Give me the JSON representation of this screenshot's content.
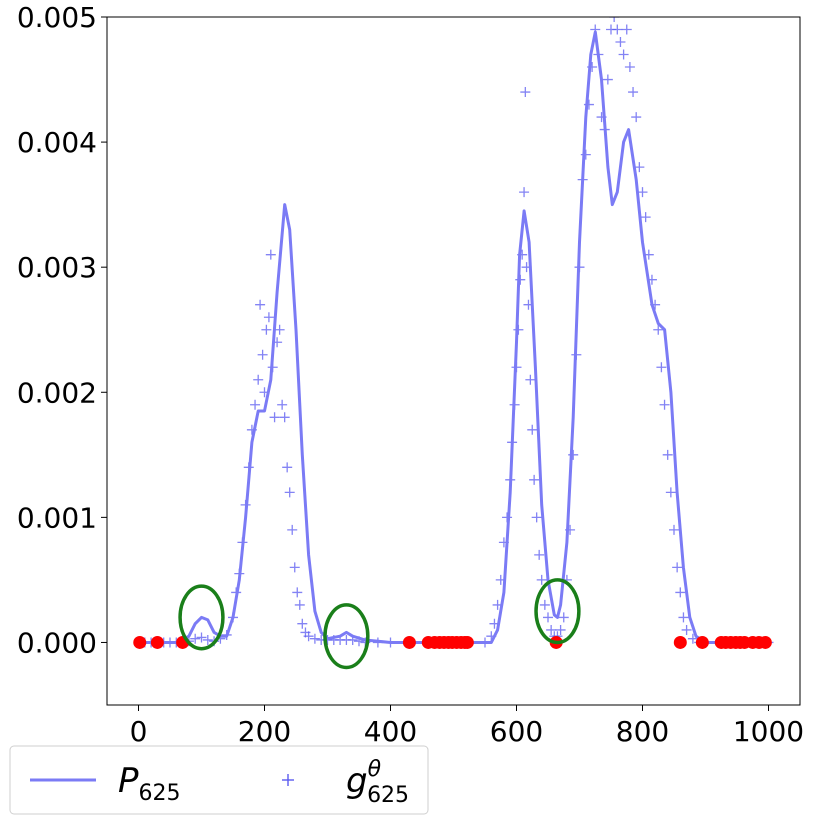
{
  "chart_data": {
    "type": "line",
    "title": "",
    "xlabel": "",
    "ylabel": "",
    "xlim": [
      -50,
      1050
    ],
    "ylim": [
      -0.0005,
      0.005
    ],
    "x_ticks": [
      0,
      200,
      400,
      600,
      800,
      1000
    ],
    "x_tick_labels": [
      "0",
      "200",
      "400",
      "600",
      "800",
      "1000"
    ],
    "y_ticks": [
      0.0,
      0.001,
      0.002,
      0.003,
      0.004,
      0.005
    ],
    "y_tick_labels": [
      "0.000",
      "0.001",
      "0.002",
      "0.003",
      "0.004",
      "0.005"
    ],
    "grid": false,
    "legend_placement": "below-left",
    "series": [
      {
        "name": "P625",
        "kind": "line",
        "color": "#7b7bf5",
        "points": [
          [
            0,
            0
          ],
          [
            60,
            0
          ],
          [
            80,
            5e-05
          ],
          [
            90,
            0.00015
          ],
          [
            100,
            0.0002
          ],
          [
            110,
            0.00018
          ],
          [
            120,
            8e-05
          ],
          [
            130,
            5e-05
          ],
          [
            140,
            5e-05
          ],
          [
            150,
            0.0002
          ],
          [
            160,
            0.0005
          ],
          [
            170,
            0.001
          ],
          [
            180,
            0.0016
          ],
          [
            190,
            0.00185
          ],
          [
            200,
            0.00185
          ],
          [
            210,
            0.0021
          ],
          [
            220,
            0.0028
          ],
          [
            232,
            0.0035
          ],
          [
            240,
            0.0033
          ],
          [
            250,
            0.0025
          ],
          [
            260,
            0.0015
          ],
          [
            270,
            0.0007
          ],
          [
            280,
            0.00025
          ],
          [
            290,
            8e-05
          ],
          [
            300,
            3e-05
          ],
          [
            320,
            5e-05
          ],
          [
            330,
            8e-05
          ],
          [
            340,
            5e-05
          ],
          [
            360,
            2e-05
          ],
          [
            400,
            0
          ],
          [
            560,
            0
          ],
          [
            570,
            0.0001
          ],
          [
            580,
            0.0004
          ],
          [
            590,
            0.0012
          ],
          [
            600,
            0.0024
          ],
          [
            605,
            0.0031
          ],
          [
            612,
            0.00345
          ],
          [
            620,
            0.0032
          ],
          [
            630,
            0.0022
          ],
          [
            640,
            0.0011
          ],
          [
            650,
            0.0005
          ],
          [
            660,
            0.00022
          ],
          [
            665,
            0.0002
          ],
          [
            670,
            0.0003
          ],
          [
            680,
            0.0008
          ],
          [
            690,
            0.0018
          ],
          [
            700,
            0.0032
          ],
          [
            710,
            0.0042
          ],
          [
            718,
            0.0047
          ],
          [
            725,
            0.00488
          ],
          [
            735,
            0.0045
          ],
          [
            745,
            0.0038
          ],
          [
            752,
            0.0035
          ],
          [
            760,
            0.0036
          ],
          [
            770,
            0.004
          ],
          [
            778,
            0.0041
          ],
          [
            790,
            0.0037
          ],
          [
            800,
            0.0032
          ],
          [
            815,
            0.0027
          ],
          [
            825,
            0.00255
          ],
          [
            835,
            0.0025
          ],
          [
            845,
            0.002
          ],
          [
            855,
            0.0012
          ],
          [
            865,
            0.0006
          ],
          [
            875,
            0.0002
          ],
          [
            885,
            5e-05
          ],
          [
            900,
            0
          ],
          [
            1000,
            0
          ]
        ]
      },
      {
        "name": "g625θ",
        "kind": "scatter",
        "marker": "+",
        "color": "#5a5af0",
        "points": [
          [
            0,
            0
          ],
          [
            10,
            0
          ],
          [
            20,
            0
          ],
          [
            30,
            0
          ],
          [
            40,
            0
          ],
          [
            50,
            0
          ],
          [
            60,
            0
          ],
          [
            70,
            0
          ],
          [
            80,
            1e-05
          ],
          [
            90,
            3e-05
          ],
          [
            100,
            4e-05
          ],
          [
            110,
            2e-05
          ],
          [
            120,
            1e-05
          ],
          [
            130,
            3e-05
          ],
          [
            140,
            6e-05
          ],
          [
            150,
            0.0002
          ],
          [
            155,
            0.0004
          ],
          [
            160,
            0.00055
          ],
          [
            165,
            0.0008
          ],
          [
            170,
            0.0011
          ],
          [
            175,
            0.0014
          ],
          [
            180,
            0.0017
          ],
          [
            185,
            0.0019
          ],
          [
            190,
            0.0021
          ],
          [
            193,
            0.0027
          ],
          [
            197,
            0.0023
          ],
          [
            200,
            0.002
          ],
          [
            203,
            0.0025
          ],
          [
            207,
            0.0026
          ],
          [
            210,
            0.0031
          ],
          [
            213,
            0.0022
          ],
          [
            216,
            0.0018
          ],
          [
            220,
            0.0024
          ],
          [
            224,
            0.0025
          ],
          [
            228,
            0.0019
          ],
          [
            232,
            0.0018
          ],
          [
            236,
            0.0014
          ],
          [
            240,
            0.0012
          ],
          [
            244,
            0.0009
          ],
          [
            248,
            0.0006
          ],
          [
            252,
            0.0004
          ],
          [
            256,
            0.0003
          ],
          [
            260,
            0.00015
          ],
          [
            265,
            8e-05
          ],
          [
            270,
            5e-05
          ],
          [
            280,
            3e-05
          ],
          [
            290,
            2e-05
          ],
          [
            300,
            2e-05
          ],
          [
            310,
            2e-05
          ],
          [
            320,
            2e-05
          ],
          [
            330,
            2e-05
          ],
          [
            340,
            2e-05
          ],
          [
            350,
            1e-05
          ],
          [
            360,
            0
          ],
          [
            380,
            0
          ],
          [
            400,
            0
          ],
          [
            430,
            0
          ],
          [
            460,
            0
          ],
          [
            490,
            0
          ],
          [
            520,
            0
          ],
          [
            550,
            0
          ],
          [
            560,
            5e-05
          ],
          [
            565,
            0.00015
          ],
          [
            570,
            0.0003
          ],
          [
            575,
            0.0005
          ],
          [
            580,
            0.0008
          ],
          [
            585,
            0.001
          ],
          [
            590,
            0.0013
          ],
          [
            593,
            0.0016
          ],
          [
            597,
            0.0019
          ],
          [
            600,
            0.0022
          ],
          [
            603,
            0.0025
          ],
          [
            606,
            0.0029
          ],
          [
            609,
            0.0031
          ],
          [
            612,
            0.0036
          ],
          [
            614,
            0.0044
          ],
          [
            616,
            0.003
          ],
          [
            619,
            0.0027
          ],
          [
            622,
            0.0021
          ],
          [
            625,
            0.0017
          ],
          [
            628,
            0.0013
          ],
          [
            632,
            0.001
          ],
          [
            636,
            0.0007
          ],
          [
            640,
            0.0005
          ],
          [
            645,
            0.0003
          ],
          [
            650,
            0.0002
          ],
          [
            655,
            0.0001
          ],
          [
            660,
            5e-05
          ],
          [
            665,
            5e-05
          ],
          [
            670,
            0.0001
          ],
          [
            675,
            0.0002
          ],
          [
            680,
            0.0005
          ],
          [
            685,
            0.0009
          ],
          [
            690,
            0.0015
          ],
          [
            695,
            0.0023
          ],
          [
            700,
            0.003
          ],
          [
            705,
            0.0037
          ],
          [
            710,
            0.0039
          ],
          [
            715,
            0.0043
          ],
          [
            720,
            0.0046
          ],
          [
            725,
            0.0049
          ],
          [
            730,
            0.0047
          ],
          [
            735,
            0.0042
          ],
          [
            740,
            0.0041
          ],
          [
            745,
            0.0045
          ],
          [
            750,
            0.0049
          ],
          [
            755,
            0.005
          ],
          [
            760,
            0.0049
          ],
          [
            765,
            0.0048
          ],
          [
            770,
            0.0047
          ],
          [
            775,
            0.0049
          ],
          [
            780,
            0.0046
          ],
          [
            785,
            0.0044
          ],
          [
            790,
            0.0042
          ],
          [
            795,
            0.0038
          ],
          [
            800,
            0.0036
          ],
          [
            805,
            0.0034
          ],
          [
            810,
            0.0031
          ],
          [
            815,
            0.0029
          ],
          [
            820,
            0.0027
          ],
          [
            825,
            0.0025
          ],
          [
            830,
            0.0022
          ],
          [
            835,
            0.0019
          ],
          [
            840,
            0.0015
          ],
          [
            845,
            0.0012
          ],
          [
            850,
            0.0009
          ],
          [
            855,
            0.0006
          ],
          [
            860,
            0.0004
          ],
          [
            865,
            0.0002
          ],
          [
            870,
            0.0001
          ],
          [
            880,
            3e-05
          ],
          [
            890,
            0
          ],
          [
            900,
            0
          ],
          [
            920,
            0
          ],
          [
            940,
            0
          ],
          [
            960,
            0
          ],
          [
            980,
            0
          ],
          [
            1000,
            0
          ]
        ]
      },
      {
        "name": "",
        "kind": "dots",
        "color": "#ff0000",
        "points": [
          [
            2,
            0
          ],
          [
            30,
            0
          ],
          [
            70,
            0
          ],
          [
            430,
            0
          ],
          [
            460,
            0
          ],
          [
            470,
            0
          ],
          [
            478,
            0
          ],
          [
            485,
            0
          ],
          [
            492,
            0
          ],
          [
            498,
            0
          ],
          [
            505,
            0
          ],
          [
            512,
            0
          ],
          [
            518,
            0
          ],
          [
            522,
            0
          ],
          [
            663,
            0
          ],
          [
            860,
            0
          ],
          [
            895,
            0
          ],
          [
            925,
            0
          ],
          [
            932,
            0
          ],
          [
            940,
            0
          ],
          [
            948,
            0
          ],
          [
            955,
            0
          ],
          [
            962,
            0
          ],
          [
            975,
            0
          ],
          [
            985,
            0
          ],
          [
            995,
            0
          ]
        ]
      }
    ],
    "annotations": [
      {
        "kind": "ellipse",
        "color": "#1a7f1a",
        "cx": 100,
        "cy": 0.0002,
        "rx": 34,
        "ry": 0.00025
      },
      {
        "kind": "ellipse",
        "color": "#1a7f1a",
        "cx": 330,
        "cy": 5e-05,
        "rx": 34,
        "ry": 0.00025
      },
      {
        "kind": "ellipse",
        "color": "#1a7f1a",
        "cx": 665,
        "cy": 0.00025,
        "rx": 34,
        "ry": 0.00025
      }
    ],
    "legend": [
      {
        "label_main": "P",
        "label_sub": "625",
        "label_sup": "",
        "marker": "line"
      },
      {
        "label_main": "g",
        "label_sub": "625",
        "label_sup": "θ",
        "marker": "+"
      }
    ]
  }
}
